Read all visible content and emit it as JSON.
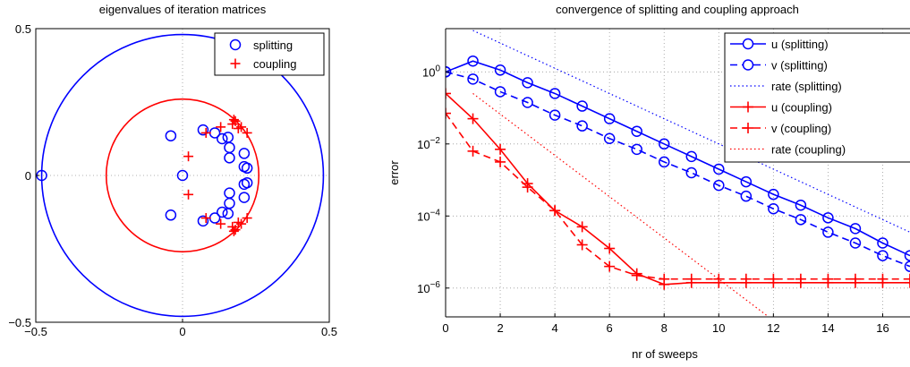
{
  "chart_data": [
    {
      "type": "scatter",
      "title": "eigenvalues of iteration matrices",
      "xlim": [
        -0.5,
        0.5
      ],
      "ylim": [
        -0.5,
        0.5
      ],
      "xticks": [
        "−0.5",
        "0",
        "0.5"
      ],
      "yticks": [
        "−0.5",
        "0",
        "0.5"
      ],
      "grid": true,
      "legend_position": "top-right",
      "colors": {
        "splitting": "#0000ff",
        "coupling": "#ff0000"
      },
      "circles": [
        {
          "series": "splitting",
          "radius": 0.48
        },
        {
          "series": "coupling",
          "radius": 0.26
        }
      ],
      "series": [
        {
          "name": "splitting",
          "marker": "circle",
          "points": [
            [
              -0.48,
              0
            ],
            [
              -0.04,
              0.135
            ],
            [
              -0.04,
              -0.135
            ],
            [
              0,
              0
            ],
            [
              0.07,
              0.155
            ],
            [
              0.07,
              -0.155
            ],
            [
              0.11,
              0.145
            ],
            [
              0.11,
              -0.145
            ],
            [
              0.135,
              0.125
            ],
            [
              0.135,
              -0.125
            ],
            [
              0.155,
              0.13
            ],
            [
              0.155,
              -0.13
            ],
            [
              0.16,
              0.095
            ],
            [
              0.16,
              -0.095
            ],
            [
              0.16,
              0.06
            ],
            [
              0.16,
              -0.06
            ],
            [
              0.21,
              0.03
            ],
            [
              0.21,
              -0.03
            ],
            [
              0.21,
              0.075
            ],
            [
              0.21,
              -0.075
            ],
            [
              0.22,
              0.025
            ],
            [
              0.22,
              -0.025
            ]
          ]
        },
        {
          "name": "coupling",
          "marker": "plus",
          "points": [
            [
              0.02,
              0.065
            ],
            [
              0.02,
              -0.065
            ],
            [
              0.08,
              0.145
            ],
            [
              0.08,
              -0.145
            ],
            [
              0.13,
              0.165
            ],
            [
              0.13,
              -0.165
            ],
            [
              0.17,
              0.175
            ],
            [
              0.17,
              -0.175
            ],
            [
              0.18,
              0.185
            ],
            [
              0.18,
              -0.185
            ],
            [
              0.19,
              0.16
            ],
            [
              0.19,
              -0.16
            ],
            [
              0.2,
              0.165
            ],
            [
              0.2,
              -0.165
            ],
            [
              0.22,
              0.145
            ],
            [
              0.22,
              -0.145
            ],
            [
              0.175,
              0.19
            ],
            [
              0.175,
              -0.19
            ]
          ]
        }
      ]
    },
    {
      "type": "line",
      "title": "convergence of splitting and coupling approach",
      "xlabel": "nr of sweeps",
      "ylabel": "error",
      "xlim": [
        0,
        17
      ],
      "ylim_log10": [
        -6.8,
        1.2
      ],
      "y_scale": "log",
      "xticks": [
        "0",
        "2",
        "4",
        "6",
        "8",
        "10",
        "12",
        "14",
        "16"
      ],
      "yticks": [
        {
          "base": "10",
          "exp": "0",
          "log10": 0
        },
        {
          "base": "10",
          "exp": "−2",
          "log10": -2
        },
        {
          "base": "10",
          "exp": "−4",
          "log10": -4
        },
        {
          "base": "10",
          "exp": "−6",
          "log10": -6
        }
      ],
      "grid": true,
      "legend_position": "top-right",
      "series": [
        {
          "name": "u (splitting)",
          "color": "#0000ff",
          "style": "solid",
          "marker": "circle",
          "x": [
            0,
            1,
            2,
            3,
            4,
            5,
            6,
            7,
            8,
            9,
            10,
            11,
            12,
            13,
            14,
            15,
            16,
            17
          ],
          "log10_y": [
            0,
            0.3,
            0.05,
            -0.3,
            -0.6,
            -0.95,
            -1.3,
            -1.65,
            -2.0,
            -2.35,
            -2.7,
            -3.05,
            -3.4,
            -3.7,
            -4.05,
            -4.35,
            -4.75,
            -5.1
          ]
        },
        {
          "name": "v (splitting)",
          "color": "#0000ff",
          "style": "dashed",
          "marker": "circle",
          "x": [
            0,
            1,
            2,
            3,
            4,
            5,
            6,
            7,
            8,
            9,
            10,
            11,
            12,
            13,
            14,
            15,
            16,
            17
          ],
          "log10_y": [
            0,
            -0.2,
            -0.55,
            -0.85,
            -1.2,
            -1.5,
            -1.85,
            -2.15,
            -2.5,
            -2.8,
            -3.15,
            -3.45,
            -3.8,
            -4.1,
            -4.45,
            -4.75,
            -5.1,
            -5.4
          ]
        },
        {
          "name": "rate (splitting)",
          "color": "#0000ff",
          "style": "dotted",
          "marker": "none",
          "x": [
            1,
            17
          ],
          "log10_y": [
            1.15,
            -4.45
          ]
        },
        {
          "name": "u (coupling)",
          "color": "#ff0000",
          "style": "solid",
          "marker": "plus",
          "x": [
            0,
            1,
            2,
            3,
            4,
            5,
            6,
            7,
            8,
            9,
            10,
            11,
            12,
            13,
            14,
            15,
            16,
            17
          ],
          "log10_y": [
            -0.6,
            -1.3,
            -2.15,
            -3.1,
            -3.85,
            -4.3,
            -4.9,
            -5.6,
            -5.9,
            -5.85,
            -5.85,
            -5.85,
            -5.85,
            -5.85,
            -5.85,
            -5.85,
            -5.85,
            -5.85
          ]
        },
        {
          "name": "v (coupling)",
          "color": "#ff0000",
          "style": "dashed",
          "marker": "plus",
          "x": [
            0,
            1,
            2,
            3,
            4,
            5,
            6,
            7,
            8,
            9,
            10,
            11,
            12,
            13,
            14,
            15,
            16,
            17
          ],
          "log10_y": [
            -1.15,
            -2.2,
            -2.5,
            -3.2,
            -3.85,
            -4.8,
            -5.4,
            -5.65,
            -5.75,
            -5.75,
            -5.75,
            -5.75,
            -5.75,
            -5.75,
            -5.75,
            -5.75,
            -5.75,
            -5.75
          ]
        },
        {
          "name": "rate (coupling)",
          "color": "#ff0000",
          "style": "dotted",
          "marker": "none",
          "x": [
            1,
            12
          ],
          "log10_y": [
            -0.6,
            -6.9
          ]
        }
      ]
    }
  ]
}
